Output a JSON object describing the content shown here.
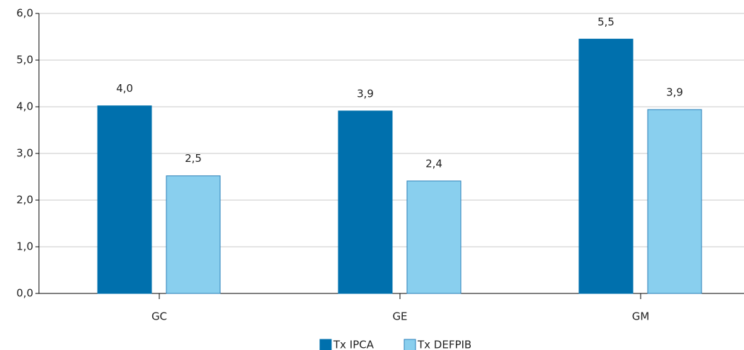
{
  "chart_data": {
    "type": "bar",
    "categories": [
      "GC",
      "GE",
      "GM"
    ],
    "series": [
      {
        "name": "Tx IPCA",
        "color": "#0070ad",
        "values": [
          4.02,
          3.91,
          5.45
        ],
        "value_labels": [
          "4,0",
          "3,9",
          "5,5"
        ]
      },
      {
        "name": "Tx DEFPIB",
        "color": "#89cfee",
        "values": [
          2.52,
          2.41,
          3.94
        ],
        "value_labels": [
          "2,5",
          "2,4",
          "3,9"
        ]
      }
    ],
    "ylim": [
      0,
      6
    ],
    "yticks": [
      {
        "value": 0,
        "label": "0,0"
      },
      {
        "value": 1,
        "label": "1,0"
      },
      {
        "value": 2,
        "label": "2,0"
      },
      {
        "value": 3,
        "label": "3,0"
      },
      {
        "value": 4,
        "label": "4,0"
      },
      {
        "value": 5,
        "label": "5,0"
      },
      {
        "value": 6,
        "label": "6,0"
      }
    ],
    "grid": true,
    "legend": "bottom"
  }
}
